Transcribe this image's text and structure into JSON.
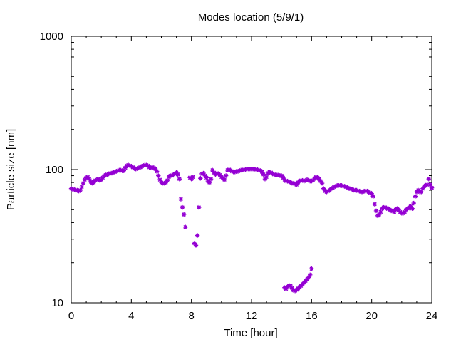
{
  "chart_data": {
    "type": "scatter",
    "title": "Modes location (5/9/1)",
    "xlabel": "Time [hour]",
    "ylabel": "Particle size [nm]",
    "xlim": [
      0,
      24
    ],
    "ylim": [
      10,
      1000
    ],
    "yscale": "log",
    "grid": false,
    "marker_color": "#9400d3",
    "x_ticks": [
      0,
      4,
      8,
      12,
      16,
      20,
      24
    ],
    "x_tick_labels": [
      "0",
      "4",
      "8",
      "12",
      "16",
      "20",
      "24"
    ],
    "y_ticks": [
      10,
      100,
      1000
    ],
    "y_tick_labels": [
      "10",
      "100",
      "1000"
    ],
    "series": [
      {
        "points": [
          [
            0.0,
            72
          ],
          [
            0.1,
            71
          ],
          [
            0.2,
            71
          ],
          [
            0.3,
            70
          ],
          [
            0.4,
            70
          ],
          [
            0.5,
            69
          ],
          [
            0.6,
            70
          ],
          [
            0.7,
            74
          ],
          [
            0.8,
            79
          ],
          [
            0.9,
            84
          ],
          [
            1.0,
            87
          ],
          [
            1.1,
            88
          ],
          [
            1.2,
            85
          ],
          [
            1.3,
            81
          ],
          [
            1.4,
            79
          ],
          [
            1.5,
            80
          ],
          [
            1.6,
            83
          ],
          [
            1.7,
            84
          ],
          [
            1.8,
            85
          ],
          [
            1.9,
            83
          ],
          [
            2.0,
            84
          ],
          [
            2.1,
            87
          ],
          [
            2.2,
            90
          ],
          [
            2.3,
            91
          ],
          [
            2.4,
            92
          ],
          [
            2.5,
            93
          ],
          [
            2.6,
            94
          ],
          [
            2.7,
            94
          ],
          [
            2.8,
            95
          ],
          [
            2.9,
            96
          ],
          [
            3.0,
            97
          ],
          [
            3.1,
            98
          ],
          [
            3.2,
            99
          ],
          [
            3.3,
            99
          ],
          [
            3.4,
            98
          ],
          [
            3.5,
            98
          ],
          [
            3.6,
            103
          ],
          [
            3.7,
            107
          ],
          [
            3.8,
            108
          ],
          [
            3.9,
            107
          ],
          [
            4.0,
            106
          ],
          [
            4.1,
            104
          ],
          [
            4.2,
            102
          ],
          [
            4.3,
            101
          ],
          [
            4.4,
            102
          ],
          [
            4.5,
            103
          ],
          [
            4.6,
            104
          ],
          [
            4.7,
            106
          ],
          [
            4.8,
            107
          ],
          [
            4.9,
            108
          ],
          [
            5.0,
            108
          ],
          [
            5.1,
            107
          ],
          [
            5.2,
            104
          ],
          [
            5.3,
            103
          ],
          [
            5.4,
            104
          ],
          [
            5.5,
            103
          ],
          [
            5.6,
            101
          ],
          [
            5.7,
            97
          ],
          [
            5.8,
            90
          ],
          [
            5.9,
            84
          ],
          [
            6.0,
            80
          ],
          [
            6.1,
            79
          ],
          [
            6.2,
            79
          ],
          [
            6.3,
            80
          ],
          [
            6.4,
            83
          ],
          [
            6.5,
            88
          ],
          [
            6.6,
            90
          ],
          [
            6.7,
            90
          ],
          [
            6.8,
            92
          ],
          [
            6.9,
            93
          ],
          [
            7.0,
            95
          ],
          [
            7.1,
            92
          ],
          [
            7.2,
            85
          ],
          [
            7.3,
            60
          ],
          [
            7.4,
            52
          ],
          [
            7.5,
            46
          ],
          [
            7.6,
            37
          ],
          [
            7.9,
            87
          ],
          [
            8.0,
            85
          ],
          [
            8.1,
            88
          ],
          [
            8.2,
            28
          ],
          [
            8.3,
            27
          ],
          [
            8.4,
            32
          ],
          [
            8.5,
            52
          ],
          [
            8.6,
            86
          ],
          [
            8.7,
            93
          ],
          [
            8.8,
            94
          ],
          [
            8.9,
            90
          ],
          [
            9.0,
            87
          ],
          [
            9.1,
            82
          ],
          [
            9.2,
            80
          ],
          [
            9.3,
            85
          ],
          [
            9.4,
            99
          ],
          [
            9.5,
            95
          ],
          [
            9.6,
            92
          ],
          [
            9.7,
            94
          ],
          [
            9.8,
            93
          ],
          [
            9.9,
            91
          ],
          [
            10.0,
            88
          ],
          [
            10.1,
            86
          ],
          [
            10.2,
            84
          ],
          [
            10.3,
            90
          ],
          [
            10.4,
            99
          ],
          [
            10.5,
            100
          ],
          [
            10.6,
            99
          ],
          [
            10.7,
            97
          ],
          [
            10.8,
            96
          ],
          [
            10.9,
            96
          ],
          [
            11.0,
            97
          ],
          [
            11.1,
            97
          ],
          [
            11.2,
            98
          ],
          [
            11.3,
            99
          ],
          [
            11.4,
            99
          ],
          [
            11.5,
            100
          ],
          [
            11.6,
            100
          ],
          [
            11.7,
            101
          ],
          [
            11.8,
            101
          ],
          [
            11.9,
            101
          ],
          [
            12.0,
            101
          ],
          [
            12.1,
            101
          ],
          [
            12.2,
            101
          ],
          [
            12.3,
            100
          ],
          [
            12.4,
            100
          ],
          [
            12.5,
            99
          ],
          [
            12.6,
            98
          ],
          [
            12.7,
            96
          ],
          [
            12.8,
            92
          ],
          [
            12.9,
            85
          ],
          [
            13.0,
            88
          ],
          [
            13.1,
            94
          ],
          [
            13.2,
            96
          ],
          [
            13.3,
            95
          ],
          [
            13.4,
            93
          ],
          [
            13.5,
            92
          ],
          [
            13.6,
            91
          ],
          [
            13.7,
            91
          ],
          [
            13.8,
            91
          ],
          [
            13.9,
            90
          ],
          [
            14.0,
            90
          ],
          [
            14.1,
            87
          ],
          [
            14.2,
            84
          ],
          [
            14.3,
            82
          ],
          [
            14.4,
            82
          ],
          [
            14.5,
            81
          ],
          [
            14.6,
            80
          ],
          [
            14.7,
            79
          ],
          [
            14.8,
            79
          ],
          [
            14.9,
            78
          ],
          [
            15.0,
            77
          ],
          [
            15.1,
            80
          ],
          [
            15.2,
            82
          ],
          [
            15.3,
            83
          ],
          [
            15.4,
            83
          ],
          [
            15.5,
            82
          ],
          [
            15.6,
            83
          ],
          [
            15.7,
            84
          ],
          [
            15.8,
            83
          ],
          [
            15.9,
            82
          ],
          [
            16.0,
            82
          ],
          [
            16.1,
            83
          ],
          [
            16.2,
            86
          ],
          [
            16.3,
            88
          ],
          [
            16.4,
            87
          ],
          [
            16.5,
            85
          ],
          [
            16.6,
            82
          ],
          [
            16.7,
            79
          ],
          [
            16.8,
            72
          ],
          [
            16.9,
            69
          ],
          [
            17.0,
            68
          ],
          [
            17.1,
            69
          ],
          [
            17.2,
            70
          ],
          [
            17.3,
            72
          ],
          [
            17.4,
            73
          ],
          [
            17.5,
            74
          ],
          [
            17.6,
            75
          ],
          [
            17.7,
            76
          ],
          [
            17.8,
            76
          ],
          [
            17.9,
            76
          ],
          [
            18.0,
            76
          ],
          [
            18.1,
            75
          ],
          [
            18.2,
            75
          ],
          [
            18.3,
            74
          ],
          [
            18.4,
            73
          ],
          [
            18.5,
            72
          ],
          [
            18.6,
            72
          ],
          [
            18.7,
            71
          ],
          [
            18.8,
            70
          ],
          [
            18.9,
            70
          ],
          [
            19.0,
            70
          ],
          [
            19.1,
            69
          ],
          [
            19.2,
            69
          ],
          [
            19.3,
            68
          ],
          [
            19.4,
            68
          ],
          [
            19.5,
            69
          ],
          [
            19.6,
            69
          ],
          [
            19.7,
            69
          ],
          [
            19.8,
            68
          ],
          [
            19.9,
            67
          ],
          [
            20.0,
            66
          ],
          [
            20.1,
            63
          ],
          [
            20.2,
            55
          ],
          [
            20.3,
            49
          ],
          [
            20.4,
            45
          ],
          [
            20.5,
            46
          ],
          [
            20.6,
            48
          ],
          [
            20.7,
            51
          ],
          [
            20.8,
            52
          ],
          [
            20.9,
            52
          ],
          [
            21.0,
            51
          ],
          [
            21.1,
            51
          ],
          [
            21.2,
            50
          ],
          [
            21.3,
            49
          ],
          [
            21.4,
            49
          ],
          [
            21.5,
            48
          ],
          [
            21.6,
            50
          ],
          [
            21.7,
            51
          ],
          [
            21.8,
            50
          ],
          [
            21.9,
            48
          ],
          [
            22.0,
            47
          ],
          [
            22.1,
            47
          ],
          [
            22.2,
            48
          ],
          [
            22.3,
            50
          ],
          [
            22.4,
            51
          ],
          [
            22.5,
            52
          ],
          [
            22.6,
            53
          ],
          [
            22.7,
            51
          ],
          [
            22.8,
            56
          ],
          [
            22.9,
            63
          ],
          [
            23.0,
            68
          ],
          [
            23.1,
            70
          ],
          [
            23.2,
            68
          ],
          [
            23.3,
            68
          ],
          [
            23.4,
            72
          ],
          [
            23.5,
            75
          ],
          [
            23.6,
            76
          ],
          [
            23.7,
            77
          ],
          [
            23.8,
            85
          ],
          [
            23.9,
            77
          ],
          [
            24.0,
            73
          ],
          [
            24.05,
            73
          ],
          [
            14.2,
            13
          ],
          [
            14.3,
            12.7
          ],
          [
            14.4,
            13.2
          ],
          [
            14.5,
            13.5
          ],
          [
            14.6,
            13.4
          ],
          [
            14.7,
            12.9
          ],
          [
            14.8,
            12.4
          ],
          [
            14.9,
            12.3
          ],
          [
            15.0,
            12.5
          ],
          [
            15.1,
            12.8
          ],
          [
            15.2,
            13.1
          ],
          [
            15.3,
            13.4
          ],
          [
            15.4,
            13.8
          ],
          [
            15.5,
            14.2
          ],
          [
            15.6,
            14.6
          ],
          [
            15.7,
            15.0
          ],
          [
            15.8,
            15.5
          ],
          [
            15.9,
            16.2
          ],
          [
            16.0,
            18.0
          ]
        ]
      }
    ]
  }
}
